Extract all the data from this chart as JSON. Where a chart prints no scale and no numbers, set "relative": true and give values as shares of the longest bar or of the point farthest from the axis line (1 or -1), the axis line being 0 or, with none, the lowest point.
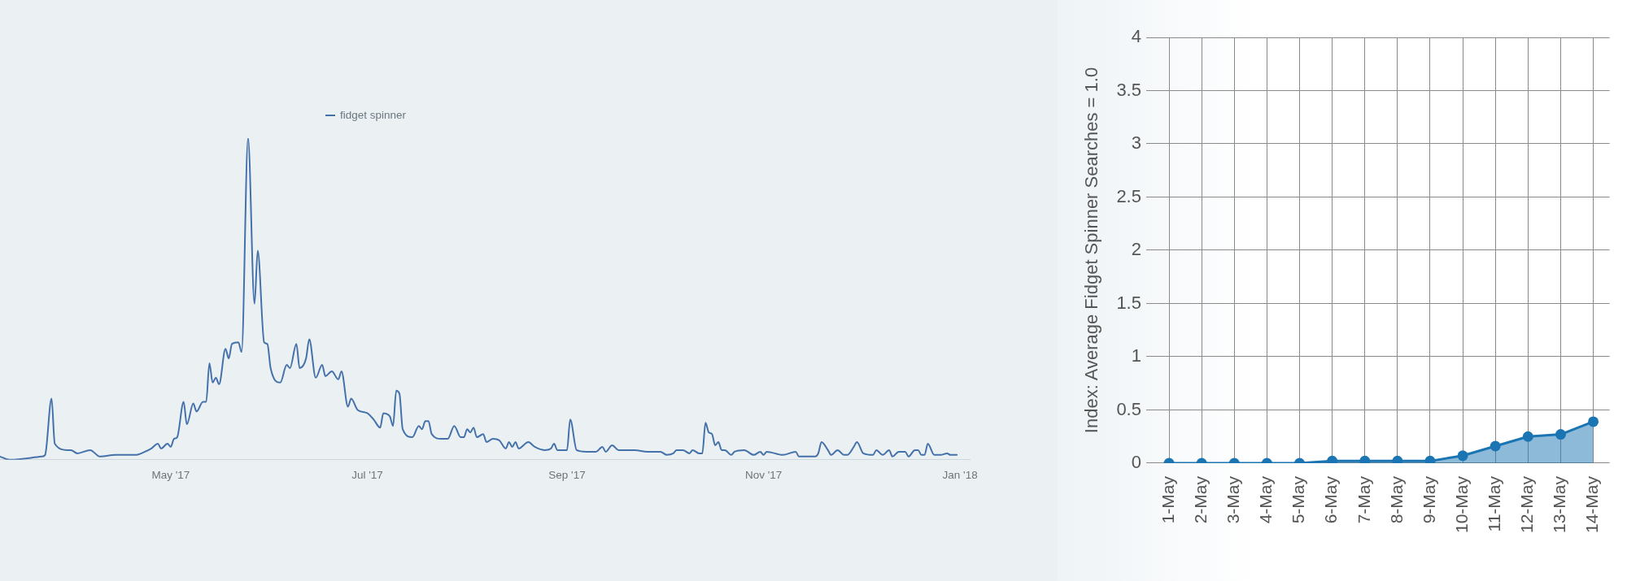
{
  "chart_data": [
    {
      "type": "line",
      "relative": true,
      "legend": "top",
      "x": [
        "2017-03-09",
        "2017-03-12",
        "2017-03-22",
        "2017-03-23",
        "2017-03-25",
        "2017-03-26",
        "2017-03-30",
        "2017-03-31",
        "2017-04-02",
        "2017-04-06",
        "2017-04-09",
        "2017-04-14",
        "2017-04-20",
        "2017-04-23",
        "2017-04-25",
        "2017-04-27",
        "2017-04-28",
        "2017-04-30",
        "2017-05-01",
        "2017-05-02",
        "2017-05-03",
        "2017-05-05",
        "2017-05-06",
        "2017-05-08",
        "2017-05-09",
        "2017-05-11",
        "2017-05-12",
        "2017-05-13",
        "2017-05-14",
        "2017-05-15",
        "2017-05-16",
        "2017-05-18",
        "2017-05-19",
        "2017-05-20",
        "2017-05-22",
        "2017-05-23",
        "2017-05-25",
        "2017-05-27",
        "2017-05-28",
        "2017-05-30",
        "2017-05-31",
        "2017-06-01",
        "2017-06-04",
        "2017-06-06",
        "2017-06-07",
        "2017-06-09",
        "2017-06-10",
        "2017-06-12",
        "2017-06-13",
        "2017-06-15",
        "2017-06-17",
        "2017-06-18",
        "2017-06-20",
        "2017-06-22",
        "2017-06-23",
        "2017-06-25",
        "2017-06-26",
        "2017-06-28",
        "2017-07-01",
        "2017-07-03",
        "2017-07-05",
        "2017-07-06",
        "2017-07-08",
        "2017-07-09",
        "2017-07-10",
        "2017-07-11",
        "2017-07-12",
        "2017-07-15",
        "2017-07-17",
        "2017-07-18",
        "2017-07-19",
        "2017-07-20",
        "2017-07-21",
        "2017-07-24",
        "2017-07-26",
        "2017-07-28",
        "2017-07-30",
        "2017-07-31",
        "2017-08-01",
        "2017-08-02",
        "2017-08-03",
        "2017-08-04",
        "2017-08-06",
        "2017-08-07",
        "2017-08-09",
        "2017-08-11",
        "2017-08-13",
        "2017-08-14",
        "2017-08-15",
        "2017-08-16",
        "2017-08-17",
        "2017-08-20",
        "2017-08-22",
        "2017-08-25",
        "2017-08-27",
        "2017-08-28",
        "2017-08-29",
        "2017-09-01",
        "2017-09-02",
        "2017-09-04",
        "2017-09-07",
        "2017-09-10",
        "2017-09-12",
        "2017-09-13",
        "2017-09-15",
        "2017-09-17",
        "2017-09-22",
        "2017-09-26",
        "2017-09-30",
        "2017-10-02",
        "2017-10-04",
        "2017-10-05",
        "2017-10-07",
        "2017-10-09",
        "2017-10-10",
        "2017-10-12",
        "2017-10-13",
        "2017-10-14",
        "2017-10-15",
        "2017-10-16",
        "2017-10-17",
        "2017-10-18",
        "2017-10-19",
        "2017-10-20",
        "2017-10-22",
        "2017-10-23",
        "2017-10-26",
        "2017-10-29",
        "2017-10-31",
        "2017-11-01",
        "2017-11-02",
        "2017-11-07",
        "2017-11-11",
        "2017-11-12",
        "2017-11-17",
        "2017-11-18",
        "2017-11-19",
        "2017-11-21",
        "2017-11-22",
        "2017-11-24",
        "2017-11-26",
        "2017-11-27",
        "2017-11-29",
        "2017-11-30",
        "2017-12-02",
        "2017-12-05",
        "2017-12-06",
        "2017-12-08",
        "2017-12-10",
        "2017-12-11",
        "2017-12-13",
        "2017-12-15",
        "2017-12-16",
        "2017-12-18",
        "2017-12-19",
        "2017-12-20",
        "2017-12-21",
        "2017-12-22",
        "2017-12-24",
        "2017-12-26",
        "2017-12-28",
        "2017-12-29",
        "2017-12-31"
      ],
      "series": [
        {
          "name": "fidget spinner",
          "color": "#4571ab",
          "values": [
            0.01,
            0.0,
            0.01,
            0.015,
            0.19,
            0.05,
            0.03,
            0.03,
            0.02,
            0.03,
            0.01,
            0.015,
            0.015,
            0.025,
            0.035,
            0.05,
            0.035,
            0.05,
            0.04,
            0.065,
            0.07,
            0.18,
            0.11,
            0.175,
            0.15,
            0.18,
            0.18,
            0.3,
            0.24,
            0.255,
            0.235,
            0.345,
            0.315,
            0.36,
            0.365,
            0.335,
            1.0,
            0.485,
            0.65,
            0.365,
            0.36,
            0.285,
            0.24,
            0.295,
            0.285,
            0.36,
            0.285,
            0.315,
            0.375,
            0.255,
            0.295,
            0.26,
            0.275,
            0.25,
            0.275,
            0.165,
            0.19,
            0.155,
            0.145,
            0.125,
            0.1,
            0.145,
            0.135,
            0.105,
            0.215,
            0.205,
            0.095,
            0.07,
            0.105,
            0.095,
            0.12,
            0.12,
            0.08,
            0.065,
            0.065,
            0.105,
            0.07,
            0.07,
            0.095,
            0.085,
            0.1,
            0.07,
            0.08,
            0.055,
            0.065,
            0.06,
            0.035,
            0.055,
            0.04,
            0.055,
            0.035,
            0.055,
            0.04,
            0.03,
            0.035,
            0.05,
            0.03,
            0.03,
            0.125,
            0.03,
            0.025,
            0.025,
            0.04,
            0.025,
            0.045,
            0.03,
            0.03,
            0.025,
            0.025,
            0.015,
            0.02,
            0.03,
            0.03,
            0.02,
            0.03,
            0.02,
            0.02,
            0.115,
            0.085,
            0.08,
            0.045,
            0.055,
            0.03,
            0.03,
            0.015,
            0.025,
            0.03,
            0.015,
            0.025,
            0.015,
            0.025,
            0.015,
            0.025,
            0.01,
            0.01,
            0.02,
            0.055,
            0.03,
            0.015,
            0.03,
            0.015,
            0.015,
            0.04,
            0.055,
            0.02,
            0.015,
            0.03,
            0.015,
            0.03,
            0.01,
            0.025,
            0.025,
            0.01,
            0.03,
            0.03,
            0.015,
            0.015,
            0.05,
            0.015,
            0.015,
            0.02,
            0.015,
            0.015
          ]
        }
      ],
      "xlim": [
        "2017-03-09",
        "2018-01-04"
      ],
      "xticks": [
        {
          "value": "2017-05-01",
          "label": "May '17"
        },
        {
          "value": "2017-07-01",
          "label": "Jul '17"
        },
        {
          "value": "2017-09-01",
          "label": "Sep '17"
        },
        {
          "value": "2017-11-01",
          "label": "Nov '17"
        },
        {
          "value": "2018-01-01",
          "label": "Jan '18"
        }
      ]
    },
    {
      "type": "area",
      "marker": "circle",
      "grid": true,
      "categories": [
        "1-May",
        "2-May",
        "3-May",
        "4-May",
        "5-May",
        "6-May",
        "7-May",
        "8-May",
        "9-May",
        "10-May",
        "11-May",
        "12-May",
        "13-May",
        "14-May"
      ],
      "series": [
        {
          "color": "#1b75b3",
          "values": [
            0,
            0,
            0,
            0,
            0,
            0.02,
            0.02,
            0.02,
            0.02,
            0.07,
            0.16,
            0.25,
            0.27,
            0.39
          ]
        }
      ],
      "ylim": [
        0,
        4
      ],
      "yticks": [
        0,
        0.5,
        1,
        1.5,
        2,
        2.5,
        3,
        3.5,
        4
      ],
      "ylabel": "Index: Average Fidget Spinner Searches = 1.0"
    }
  ]
}
